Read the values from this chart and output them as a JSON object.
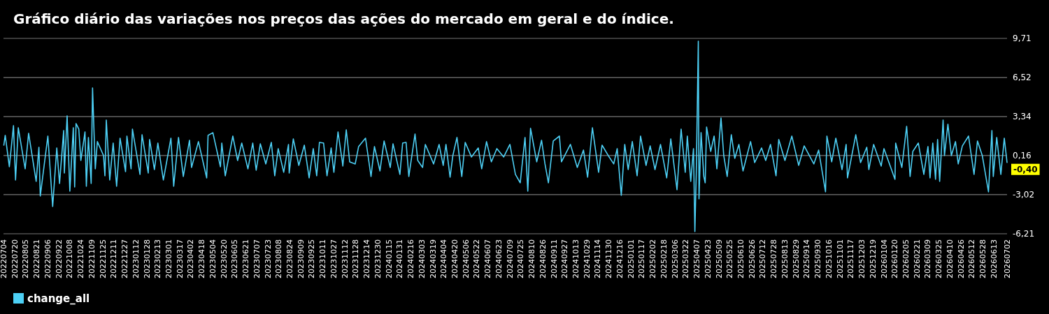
{
  "chart_data": {
    "type": "line",
    "title": "Gráfico diário das variações nos preços das ações do mercado em geral e do índice.",
    "xlim": [
      "2022-07-04",
      "2026-07-02"
    ],
    "ylim": [
      -6.21,
      9.71
    ],
    "yticks": [
      {
        "value": -6.21,
        "label": "-6,21"
      },
      {
        "value": -3.02,
        "label": "-3,02"
      },
      {
        "value": 0.16,
        "label": "0,16"
      },
      {
        "value": 3.34,
        "label": "3,34"
      },
      {
        "value": 6.52,
        "label": "6,52"
      },
      {
        "value": 9.71,
        "label": "9,71"
      }
    ],
    "xticks": [
      {
        "value": "2022-07-04",
        "label": "20220704"
      },
      {
        "value": "2022-07-20",
        "label": "20220720"
      },
      {
        "value": "2022-08-05",
        "label": "20220805"
      },
      {
        "value": "2022-08-21",
        "label": "20220821"
      },
      {
        "value": "2022-09-06",
        "label": "20220906"
      },
      {
        "value": "2022-09-22",
        "label": "20220922"
      },
      {
        "value": "2022-10-08",
        "label": "20221008"
      },
      {
        "value": "2022-10-24",
        "label": "20221024"
      },
      {
        "value": "2022-11-09",
        "label": "20221109"
      },
      {
        "value": "2022-11-25",
        "label": "20221125"
      },
      {
        "value": "2022-12-11",
        "label": "20221211"
      },
      {
        "value": "2022-12-27",
        "label": "20221227"
      },
      {
        "value": "2023-01-12",
        "label": "20230112"
      },
      {
        "value": "2023-01-28",
        "label": "20230128"
      },
      {
        "value": "2023-02-13",
        "label": "20230213"
      },
      {
        "value": "2023-03-01",
        "label": "20230301"
      },
      {
        "value": "2023-03-17",
        "label": "20230317"
      },
      {
        "value": "2023-04-02",
        "label": "20230402"
      },
      {
        "value": "2023-04-18",
        "label": "20230418"
      },
      {
        "value": "2023-05-04",
        "label": "20230504"
      },
      {
        "value": "2023-05-20",
        "label": "20230520"
      },
      {
        "value": "2023-06-05",
        "label": "20230605"
      },
      {
        "value": "2023-06-21",
        "label": "20230621"
      },
      {
        "value": "2023-07-07",
        "label": "20230707"
      },
      {
        "value": "2023-07-23",
        "label": "20230723"
      },
      {
        "value": "2023-08-08",
        "label": "20230808"
      },
      {
        "value": "2023-08-24",
        "label": "20230824"
      },
      {
        "value": "2023-09-09",
        "label": "20230909"
      },
      {
        "value": "2023-09-25",
        "label": "20230925"
      },
      {
        "value": "2023-10-11",
        "label": "20231011"
      },
      {
        "value": "2023-10-27",
        "label": "20231027"
      },
      {
        "value": "2023-11-12",
        "label": "20231112"
      },
      {
        "value": "2023-11-28",
        "label": "20231128"
      },
      {
        "value": "2023-12-14",
        "label": "20231214"
      },
      {
        "value": "2023-12-30",
        "label": "20231230"
      },
      {
        "value": "2024-01-15",
        "label": "20240115"
      },
      {
        "value": "2024-01-31",
        "label": "20240131"
      },
      {
        "value": "2024-02-16",
        "label": "20240216"
      },
      {
        "value": "2024-03-03",
        "label": "20240303"
      },
      {
        "value": "2024-03-19",
        "label": "20240319"
      },
      {
        "value": "2024-04-04",
        "label": "20240404"
      },
      {
        "value": "2024-04-20",
        "label": "20240420"
      },
      {
        "value": "2024-05-06",
        "label": "20240506"
      },
      {
        "value": "2024-05-22",
        "label": "20240522"
      },
      {
        "value": "2024-06-07",
        "label": "20240607"
      },
      {
        "value": "2024-06-23",
        "label": "20240623"
      },
      {
        "value": "2024-07-09",
        "label": "20240709"
      },
      {
        "value": "2024-07-25",
        "label": "20240725"
      },
      {
        "value": "2024-08-10",
        "label": "20240810"
      },
      {
        "value": "2024-08-26",
        "label": "20240826"
      },
      {
        "value": "2024-09-11",
        "label": "20240911"
      },
      {
        "value": "2024-09-27",
        "label": "20240927"
      },
      {
        "value": "2024-10-13",
        "label": "20241013"
      },
      {
        "value": "2024-10-29",
        "label": "20241029"
      },
      {
        "value": "2024-11-14",
        "label": "20241114"
      },
      {
        "value": "2024-11-30",
        "label": "20241130"
      },
      {
        "value": "2024-12-16",
        "label": "20241216"
      },
      {
        "value": "2025-01-01",
        "label": "20250101"
      },
      {
        "value": "2025-01-17",
        "label": "20250117"
      },
      {
        "value": "2025-02-02",
        "label": "20250202"
      },
      {
        "value": "2025-02-18",
        "label": "20250218"
      },
      {
        "value": "2025-03-06",
        "label": "20250306"
      },
      {
        "value": "2025-03-22",
        "label": "20250322"
      },
      {
        "value": "2025-04-07",
        "label": "20250407"
      },
      {
        "value": "2025-04-23",
        "label": "20250423"
      },
      {
        "value": "2025-05-09",
        "label": "20250509"
      },
      {
        "value": "2025-05-25",
        "label": "20250525"
      },
      {
        "value": "2025-06-10",
        "label": "20250610"
      },
      {
        "value": "2025-06-26",
        "label": "20250626"
      },
      {
        "value": "2025-07-12",
        "label": "20250712"
      },
      {
        "value": "2025-07-28",
        "label": "20250728"
      },
      {
        "value": "2025-08-13",
        "label": "20250813"
      },
      {
        "value": "2025-08-29",
        "label": "20250829"
      },
      {
        "value": "2025-09-14",
        "label": "20250914"
      },
      {
        "value": "2025-09-30",
        "label": "20250930"
      },
      {
        "value": "2025-10-16",
        "label": "20251016"
      },
      {
        "value": "2025-11-01",
        "label": "20251101"
      },
      {
        "value": "2025-11-17",
        "label": "20251117"
      },
      {
        "value": "2025-12-03",
        "label": "20251203"
      },
      {
        "value": "2025-12-19",
        "label": "20251219"
      },
      {
        "value": "2026-01-04",
        "label": "20260104"
      },
      {
        "value": "2026-01-20",
        "label": "20260120"
      },
      {
        "value": "2026-02-05",
        "label": "20260205"
      },
      {
        "value": "2026-02-21",
        "label": "20260221"
      },
      {
        "value": "2026-03-09",
        "label": "20260309"
      },
      {
        "value": "2026-03-25",
        "label": "20260325"
      },
      {
        "value": "2026-04-10",
        "label": "20260410"
      },
      {
        "value": "2026-04-26",
        "label": "20260426"
      },
      {
        "value": "2026-05-12",
        "label": "20260512"
      },
      {
        "value": "2026-05-28",
        "label": "20260528"
      },
      {
        "value": "2026-06-13",
        "label": "20260613"
      },
      {
        "value": "2026-07-02",
        "label": "20260702"
      }
    ],
    "grid": "y",
    "legend": "bottom left",
    "line_style": "solid",
    "annotations": [
      {
        "text": "-0,40",
        "x": "2026-07-02",
        "y": -0.4
      }
    ],
    "series": [
      {
        "name": "change_all",
        "color": "#4dd0f5",
        "x": [
          "2022-07-04",
          "2022-07-06",
          "2022-07-12",
          "2022-07-18",
          "2022-07-21",
          "2022-07-25",
          "2022-08-04",
          "2022-08-09",
          "2022-08-20",
          "2022-08-24",
          "2022-08-26",
          "2022-09-06",
          "2022-09-13",
          "2022-09-19",
          "2022-09-23",
          "2022-09-29",
          "2022-09-30",
          "2022-10-04",
          "2022-10-08",
          "2022-10-13",
          "2022-10-15",
          "2022-10-17",
          "2022-10-21",
          "2022-10-24",
          "2022-10-30",
          "2022-11-01",
          "2022-11-04",
          "2022-11-08",
          "2022-11-10",
          "2022-11-14",
          "2022-11-17",
          "2022-11-26",
          "2022-11-28",
          "2022-11-30",
          "2022-12-05",
          "2022-12-10",
          "2022-12-15",
          "2022-12-20",
          "2022-12-28",
          "2022-12-30",
          "2023-01-05",
          "2023-01-07",
          "2023-01-18",
          "2023-01-21",
          "2023-01-30",
          "2023-02-01",
          "2023-02-08",
          "2023-02-13",
          "2023-02-21",
          "2023-03-04",
          "2023-03-08",
          "2023-03-15",
          "2023-03-22",
          "2023-03-31",
          "2023-04-03",
          "2023-04-13",
          "2023-04-25",
          "2023-04-27",
          "2023-05-04",
          "2023-05-15",
          "2023-05-17",
          "2023-05-22",
          "2023-06-02",
          "2023-06-09",
          "2023-06-15",
          "2023-06-24",
          "2023-07-01",
          "2023-07-06",
          "2023-07-12",
          "2023-07-20",
          "2023-07-28",
          "2023-08-02",
          "2023-08-07",
          "2023-08-15",
          "2023-08-22",
          "2023-08-23",
          "2023-08-29",
          "2023-09-06",
          "2023-09-14",
          "2023-09-21",
          "2023-09-27",
          "2023-10-02",
          "2023-10-06",
          "2023-10-12",
          "2023-10-17",
          "2023-10-23",
          "2023-10-27",
          "2023-11-02",
          "2023-11-08",
          "2023-11-09",
          "2023-11-14",
          "2023-11-19",
          "2023-11-27",
          "2023-12-02",
          "2023-12-12",
          "2023-12-20",
          "2023-12-25",
          "2024-01-02",
          "2024-01-08",
          "2024-01-17",
          "2024-01-21",
          "2024-01-31",
          "2024-02-04",
          "2024-02-09",
          "2024-02-13",
          "2024-02-22",
          "2024-02-26",
          "2024-03-04",
          "2024-03-08",
          "2024-03-20",
          "2024-03-28",
          "2024-04-03",
          "2024-04-07",
          "2024-04-13",
          "2024-04-17",
          "2024-04-23",
          "2024-04-30",
          "2024-05-05",
          "2024-05-14",
          "2024-05-24",
          "2024-05-29",
          "2024-06-05",
          "2024-06-12",
          "2024-06-20",
          "2024-06-30",
          "2024-07-09",
          "2024-07-17",
          "2024-07-24",
          "2024-07-31",
          "2024-08-04",
          "2024-08-08",
          "2024-08-17",
          "2024-08-24",
          "2024-08-29",
          "2024-09-03",
          "2024-09-10",
          "2024-09-19",
          "2024-09-22",
          "2024-10-05",
          "2024-10-15",
          "2024-10-24",
          "2024-10-30",
          "2024-11-06",
          "2024-11-15",
          "2024-11-20",
          "2024-11-29",
          "2024-12-07",
          "2024-12-12",
          "2024-12-18",
          "2024-12-23",
          "2024-12-28",
          "2025-01-03",
          "2025-01-10",
          "2025-01-15",
          "2025-01-23",
          "2025-01-29",
          "2025-02-05",
          "2025-02-13",
          "2025-02-22",
          "2025-02-28",
          "2025-03-09",
          "2025-03-15",
          "2025-03-21",
          "2025-03-24",
          "2025-03-29",
          "2025-04-02",
          "2025-04-04",
          "2025-04-06",
          "2025-04-09",
          "2025-04-10",
          "2025-04-13",
          "2025-04-17",
          "2025-04-19",
          "2025-04-21",
          "2025-04-27",
          "2025-05-02",
          "2025-05-06",
          "2025-05-12",
          "2025-05-16",
          "2025-05-21",
          "2025-05-27",
          "2025-06-01",
          "2025-06-07",
          "2025-06-13",
          "2025-06-24",
          "2025-06-30",
          "2025-07-10",
          "2025-07-16",
          "2025-07-23",
          "2025-07-31",
          "2025-08-04",
          "2025-08-13",
          "2025-08-23",
          "2025-09-02",
          "2025-09-10",
          "2025-09-24",
          "2025-10-01",
          "2025-10-11",
          "2025-10-13",
          "2025-10-20",
          "2025-10-26",
          "2025-11-04",
          "2025-11-10",
          "2025-11-12",
          "2025-11-24",
          "2025-12-01",
          "2025-12-10",
          "2025-12-13",
          "2025-12-20",
          "2025-12-31",
          "2026-01-04",
          "2026-01-20",
          "2026-01-21",
          "2026-01-30",
          "2026-02-06",
          "2026-02-11",
          "2026-02-15",
          "2026-02-23",
          "2026-03-03",
          "2026-03-09",
          "2026-03-12",
          "2026-03-16",
          "2026-03-20",
          "2026-03-23",
          "2026-03-26",
          "2026-03-31",
          "2026-04-02",
          "2026-04-07",
          "2026-04-12",
          "2026-04-18",
          "2026-04-22",
          "2026-04-28",
          "2026-05-07",
          "2026-05-15",
          "2026-05-20",
          "2026-05-27",
          "2026-06-05",
          "2026-06-10",
          "2026-06-12",
          "2026-06-17",
          "2026-06-23",
          "2026-06-28",
          "2026-07-02"
        ],
        "values": [
          1.01,
          1.81,
          -0.75,
          2.6,
          -1.83,
          2.43,
          -0.92,
          1.98,
          -1.94,
          0.84,
          -3.13,
          1.75,
          -3.99,
          0.78,
          -2.11,
          2.2,
          -1.26,
          3.4,
          -2.74,
          2.43,
          -2.4,
          2.77,
          2.32,
          -0.24,
          2.09,
          -2.34,
          1.64,
          -2.11,
          5.67,
          -0.92,
          1.3,
          0.16,
          -1.49,
          3.06,
          -1.83,
          1.18,
          -2.34,
          1.58,
          -1.15,
          1.75,
          -0.92,
          2.32,
          -1.37,
          1.86,
          -1.26,
          1.47,
          -0.98,
          1.18,
          -1.83,
          1.58,
          -2.34,
          1.64,
          -1.54,
          1.41,
          -0.81,
          1.3,
          -1.66,
          1.81,
          2.03,
          -0.75,
          1.18,
          -1.49,
          1.75,
          -0.24,
          1.18,
          -0.92,
          1.18,
          -1.03,
          1.12,
          -0.52,
          1.24,
          -1.49,
          0.73,
          -1.2,
          1.07,
          -1.26,
          1.52,
          -0.64,
          1.01,
          -1.66,
          0.73,
          -1.49,
          1.24,
          1.18,
          -1.49,
          0.78,
          -1.2,
          2.09,
          -0.24,
          -0.69,
          2.26,
          -0.35,
          -0.52,
          0.9,
          1.58,
          -1.54,
          0.9,
          -1.09,
          1.35,
          -0.81,
          1.12,
          -1.37,
          1.18,
          1.24,
          -1.54,
          1.92,
          -0.24,
          -0.81,
          1.07,
          -0.52,
          1.07,
          -0.64,
          1.07,
          -1.6,
          0.16,
          1.64,
          -1.54,
          1.24,
          0.05,
          0.78,
          -0.92,
          1.3,
          -0.35,
          0.73,
          0.05,
          1.07,
          -1.37,
          -2.06,
          1.64,
          -2.74,
          2.38,
          -0.35,
          1.41,
          -0.52,
          -2.06,
          1.35,
          1.75,
          -0.35,
          1.07,
          -0.81,
          0.61,
          -1.6,
          2.43,
          -1.2,
          1.01,
          0.16,
          -0.52,
          0.73,
          -3.08,
          1.07,
          -0.98,
          1.3,
          -1.49,
          1.75,
          -0.64,
          0.95,
          -0.98,
          1.07,
          -1.66,
          1.52,
          -2.62,
          2.32,
          -1.2,
          1.75,
          -1.94,
          0.73,
          -6.03,
          -1.37,
          9.48,
          -3.36,
          2.03,
          -1.54,
          -2.06,
          2.49,
          0.5,
          1.75,
          -0.92,
          3.23,
          0.16,
          -1.54,
          1.86,
          -0.07,
          1.07,
          -1.09,
          1.3,
          -0.41,
          0.78,
          -0.24,
          1.07,
          -1.49,
          1.47,
          -0.24,
          1.75,
          -0.64,
          0.95,
          -0.52,
          0.61,
          -2.79,
          1.75,
          -0.35,
          1.58,
          -0.98,
          1.07,
          -1.66,
          1.86,
          -0.41,
          0.84,
          -0.98,
          1.07,
          -0.69,
          0.73,
          -1.77,
          1.18,
          -0.81,
          2.55,
          -1.54,
          0.5,
          1.18,
          -1.37,
          0.9,
          -1.66,
          1.18,
          -1.77,
          1.47,
          -1.94,
          3.06,
          0.16,
          2.72,
          0.16,
          1.3,
          -0.52,
          0.95,
          1.75,
          -1.37,
          1.35,
          0.16,
          -2.79,
          2.2,
          -1.54,
          1.64,
          -1.37,
          1.58,
          -0.4
        ]
      }
    ]
  }
}
